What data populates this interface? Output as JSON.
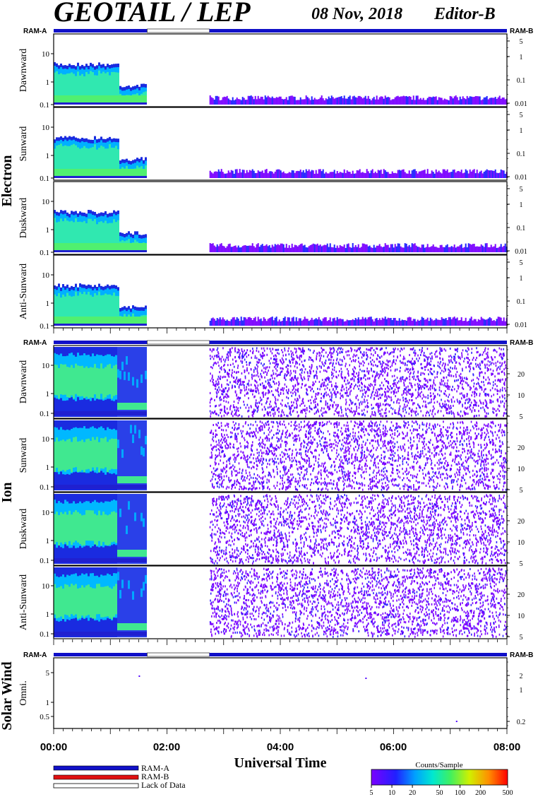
{
  "header": {
    "instrument": "GEOTAIL / LEP",
    "date": "08 Nov, 2018",
    "editor": "Editor-B"
  },
  "ram_labels": {
    "left": "RAM-A",
    "right": "RAM-B"
  },
  "colors": {
    "ram_a": "#1010c8",
    "ram_b": "#e01010",
    "lack_of_data": "#ffffff"
  },
  "colorbar": {
    "title": "Counts/Sample",
    "ticks": [
      "5",
      "10",
      "20",
      "50",
      "100",
      "200",
      "500"
    ],
    "scale": "log",
    "range": [
      5,
      500
    ]
  },
  "legend": {
    "items": [
      {
        "label": "RAM-A",
        "color": "#1010c8"
      },
      {
        "label": "RAM-B",
        "color": "#e01010"
      },
      {
        "label": "Lack of Data",
        "color": "#ffffff"
      }
    ]
  },
  "xaxis": {
    "label": "Universal Time",
    "ticks": [
      "00:00",
      "02:00",
      "04:00",
      "06:00",
      "08:00"
    ],
    "range_hours": [
      0,
      8
    ]
  },
  "groups": [
    {
      "name": "Electron"
    },
    {
      "name": "Ion"
    },
    {
      "name": "Solar Wind"
    }
  ],
  "chart_data": [
    {
      "type": "heatmap",
      "group": "Electron",
      "panels": [
        "Dawnward",
        "Sunward",
        "Duskward",
        "Anti-Sunward"
      ],
      "left_ticks": [
        "10",
        "1",
        "0.1"
      ],
      "right_ticks": [
        "5",
        "1",
        "0.1",
        "0.01"
      ],
      "yscale": "log",
      "data_coverage_hours": [
        [
          0.0,
          1.65
        ],
        [
          2.75,
          8.0
        ]
      ],
      "lack_of_data_hours": [
        1.65,
        2.75
      ]
    },
    {
      "type": "heatmap",
      "group": "Ion",
      "panels": [
        "Dawnward",
        "Sunward",
        "Duskward",
        "Anti-Sunward"
      ],
      "left_ticks": [
        "10",
        "1",
        "0.1"
      ],
      "right_ticks": [
        "20",
        "10",
        "5"
      ],
      "yscale": "log",
      "data_coverage_hours": [
        [
          0.0,
          1.65
        ],
        [
          2.75,
          8.0
        ]
      ],
      "lack_of_data_hours": [
        1.65,
        2.75
      ]
    },
    {
      "type": "heatmap",
      "group": "Solar Wind",
      "panels": [
        "Omni."
      ],
      "left_ticks": [
        "5",
        "1",
        "0.5"
      ],
      "right_ticks": [
        "2",
        "1",
        "0.2"
      ],
      "yscale": "log",
      "lack_of_data_hours": [
        1.65,
        2.75
      ]
    }
  ]
}
